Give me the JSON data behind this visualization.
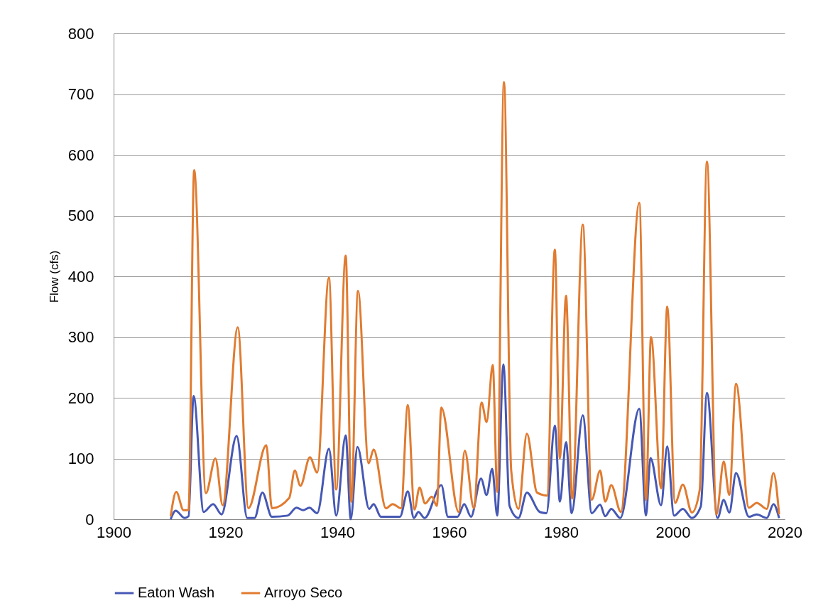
{
  "chart_data": {
    "type": "line",
    "ylabel": "Flow (cfs)",
    "xlim": [
      1900,
      2020
    ],
    "xticks": [
      1900,
      1920,
      1940,
      1960,
      1980,
      2000,
      2020
    ],
    "ylim": [
      0,
      800
    ],
    "yticks": [
      0,
      100,
      200,
      300,
      400,
      500,
      600,
      700,
      800
    ],
    "grid": "y",
    "legend": "bottom",
    "line_style": "solid",
    "series": [
      {
        "name": "Eaton Wash",
        "color": "#4658b4",
        "x": [
          1910.2,
          1911.1,
          1912.7,
          1913.4,
          1914.3,
          1916.1,
          1917.8,
          1919.3,
          1922.0,
          1923.9,
          1925.2,
          1926.6,
          1928.3,
          1931.1,
          1932.7,
          1933.9,
          1935.0,
          1936.4,
          1938.5,
          1939.8,
          1941.5,
          1942.4,
          1943.6,
          1945.7,
          1946.5,
          1947.8,
          1951.2,
          1952.6,
          1953.7,
          1954.5,
          1955.6,
          1958.6,
          1959.8,
          1961.5,
          1962.7,
          1963.9,
          1965.7,
          1966.7,
          1967.7,
          1968.6,
          1969.7,
          1970.8,
          1972.4,
          1973.9,
          1976.2,
          1977.4,
          1978.9,
          1979.8,
          1980.9,
          1981.9,
          1983.9,
          1985.5,
          1987.0,
          1987.9,
          1989.0,
          1990.6,
          1994.0,
          1995.2,
          1996.0,
          1997.9,
          1999.0,
          2000.2,
          2001.8,
          2003.4,
          2005.0,
          2006.1,
          2008.0,
          2009.1,
          2010.1,
          2011.3,
          2013.6,
          2015.0,
          2016.8,
          2018.0,
          2019.0
        ],
        "values": [
          0,
          14,
          2,
          5,
          203,
          12,
          25,
          8,
          137,
          2,
          2,
          44,
          4,
          6,
          19,
          15,
          19,
          10,
          116,
          6,
          138,
          0,
          119,
          17,
          25,
          4,
          4,
          46,
          2,
          12,
          2,
          56,
          4,
          4,
          25,
          4,
          67,
          40,
          83,
          6,
          255,
          22,
          2,
          44,
          12,
          10,
          154,
          29,
          127,
          10,
          171,
          10,
          24,
          5,
          17,
          2,
          182,
          6,
          101,
          23,
          120,
          6,
          17,
          2,
          21,
          208,
          2,
          32,
          11,
          76,
          4,
          8,
          2,
          25,
          2
        ]
      },
      {
        "name": "Arroyo Seco",
        "color": "#e07b30",
        "x": [
          1910.2,
          1911.2,
          1912.5,
          1913.4,
          1914.4,
          1916.5,
          1918.2,
          1919.5,
          1922.2,
          1924.1,
          1927.3,
          1928.3,
          1931.4,
          1932.4,
          1933.4,
          1935.1,
          1936.4,
          1938.5,
          1939.8,
          1941.5,
          1942.5,
          1943.7,
          1945.6,
          1946.5,
          1948.7,
          1949.9,
          1951.4,
          1952.6,
          1953.8,
          1954.7,
          1955.7,
          1956.9,
          1957.8,
          1958.6,
          1961.7,
          1962.8,
          1964.4,
          1965.8,
          1966.7,
          1967.8,
          1968.6,
          1969.8,
          1971.1,
          1972.4,
          1973.9,
          1975.7,
          1977.5,
          1978.9,
          1979.8,
          1980.9,
          1982.0,
          1983.9,
          1985.5,
          1987.0,
          1987.9,
          1989.0,
          1990.7,
          1994.0,
          1995.2,
          1996.1,
          1997.9,
          1999.0,
          2000.4,
          2001.8,
          2003.4,
          2004.8,
          2006.1,
          2007.8,
          2009.1,
          2010.1,
          2011.3,
          2013.6,
          2015.0,
          2016.8,
          2018.0,
          2019.0
        ],
        "values": [
          5,
          45,
          15,
          15,
          575,
          43,
          100,
          23,
          316,
          18,
          122,
          18,
          35,
          80,
          55,
          102,
          77,
          398,
          49,
          434,
          29,
          376,
          92,
          115,
          18,
          25,
          18,
          188,
          16,
          52,
          26,
          37,
          22,
          184,
          12,
          113,
          18,
          192,
          160,
          254,
          45,
          720,
          80,
          17,
          141,
          44,
          39,
          444,
          100,
          368,
          34,
          485,
          32,
          80,
          29,
          56,
          12,
          521,
          32,
          300,
          51,
          350,
          27,
          57,
          11,
          48,
          589,
          8,
          95,
          40,
          223,
          19,
          27,
          17,
          76,
          8
        ]
      }
    ]
  }
}
